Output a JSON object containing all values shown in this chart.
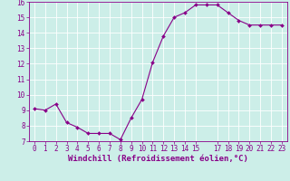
{
  "x": [
    0,
    1,
    2,
    3,
    4,
    5,
    6,
    7,
    8,
    9,
    10,
    11,
    12,
    13,
    14,
    15,
    16,
    17,
    18,
    19,
    20,
    21,
    22,
    23
  ],
  "y": [
    9.1,
    9.0,
    9.4,
    8.2,
    7.9,
    7.5,
    7.5,
    7.5,
    7.1,
    8.5,
    9.7,
    12.1,
    13.8,
    15.0,
    15.3,
    15.8,
    15.8,
    15.8,
    15.3,
    14.8,
    14.5,
    14.5,
    14.5,
    14.5
  ],
  "line_color": "#880088",
  "marker": "D",
  "marker_size": 2.0,
  "bg_color": "#cceee8",
  "grid_color": "#ffffff",
  "xlabel": "Windchill (Refroidissement éolien,°C)",
  "ylim": [
    7,
    16
  ],
  "xlim": [
    -0.5,
    23.5
  ],
  "yticks": [
    7,
    8,
    9,
    10,
    11,
    12,
    13,
    14,
    15,
    16
  ],
  "xticks": [
    0,
    1,
    2,
    3,
    4,
    5,
    6,
    7,
    8,
    9,
    10,
    11,
    12,
    13,
    14,
    15,
    17,
    18,
    19,
    20,
    21,
    22,
    23
  ],
  "tick_color": "#880088",
  "label_color": "#880088",
  "tick_fontsize": 5.5,
  "xlabel_fontsize": 6.5
}
